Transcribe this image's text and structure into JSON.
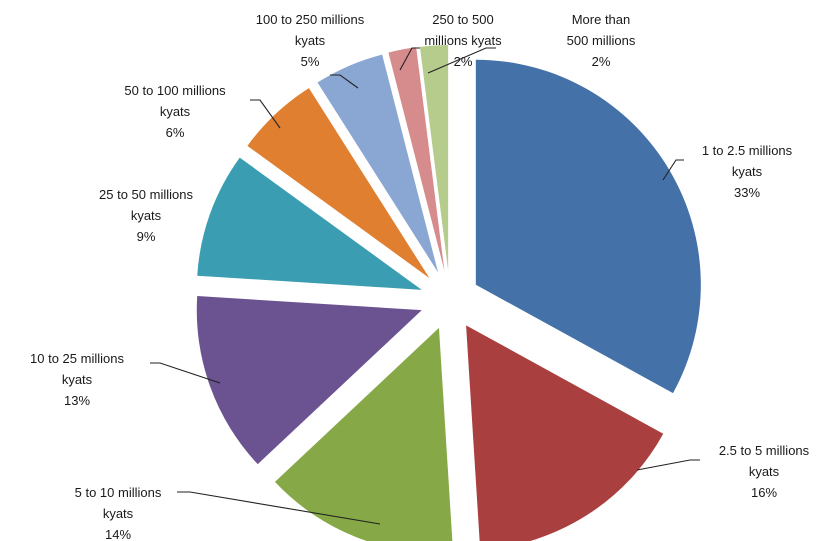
{
  "chart_data": {
    "type": "pie",
    "title": "",
    "exploded": true,
    "slices": [
      {
        "label": "1 to 2.5 millions kyats",
        "value": 33,
        "value_label": "33%",
        "color": "#4472a8"
      },
      {
        "label": "2.5 to 5 millions kyats",
        "value": 16,
        "value_label": "16%",
        "color": "#a9403f"
      },
      {
        "label": "5 to 10 millions kyats",
        "value": 14,
        "value_label": "14%",
        "color": "#86a846"
      },
      {
        "label": "10 to 25 millions kyats",
        "value": 13,
        "value_label": "13%",
        "color": "#6b5290"
      },
      {
        "label": "25 to 50 millions kyats",
        "value": 9,
        "value_label": "9%",
        "color": "#3b9db2"
      },
      {
        "label": "50 to 100 millions kyats",
        "value": 6,
        "value_label": "6%",
        "color": "#e07f30"
      },
      {
        "label": "100 to 250 millions kyats",
        "value": 5,
        "value_label": "5%",
        "color": "#8aa6d3"
      },
      {
        "label": "250 to 500 millions kyats",
        "value": 2,
        "value_label": "2%",
        "color": "#d68b8d"
      },
      {
        "label": "More than 500 millions",
        "value": 2,
        "value_label": "2%",
        "color": "#b5cc8c"
      }
    ]
  },
  "labels": [
    {
      "lines": [
        "1 to 2.5 millions",
        "kyats",
        "33%"
      ]
    },
    {
      "lines": [
        "2.5 to 5 millions",
        "kyats",
        "16%"
      ]
    },
    {
      "lines": [
        "5 to 10 millions",
        "kyats",
        "14%"
      ]
    },
    {
      "lines": [
        "10 to 25 millions",
        "kyats",
        "13%"
      ]
    },
    {
      "lines": [
        "25 to 50 millions",
        "kyats",
        "9%"
      ]
    },
    {
      "lines": [
        "50 to 100 millions",
        "kyats",
        "6%"
      ]
    },
    {
      "lines": [
        "100 to 250 millions",
        "kyats",
        "5%"
      ]
    },
    {
      "lines": [
        "250 to 500",
        "millions kyats",
        "2%"
      ]
    },
    {
      "lines": [
        "More than",
        "500 millions",
        "2%"
      ]
    }
  ]
}
